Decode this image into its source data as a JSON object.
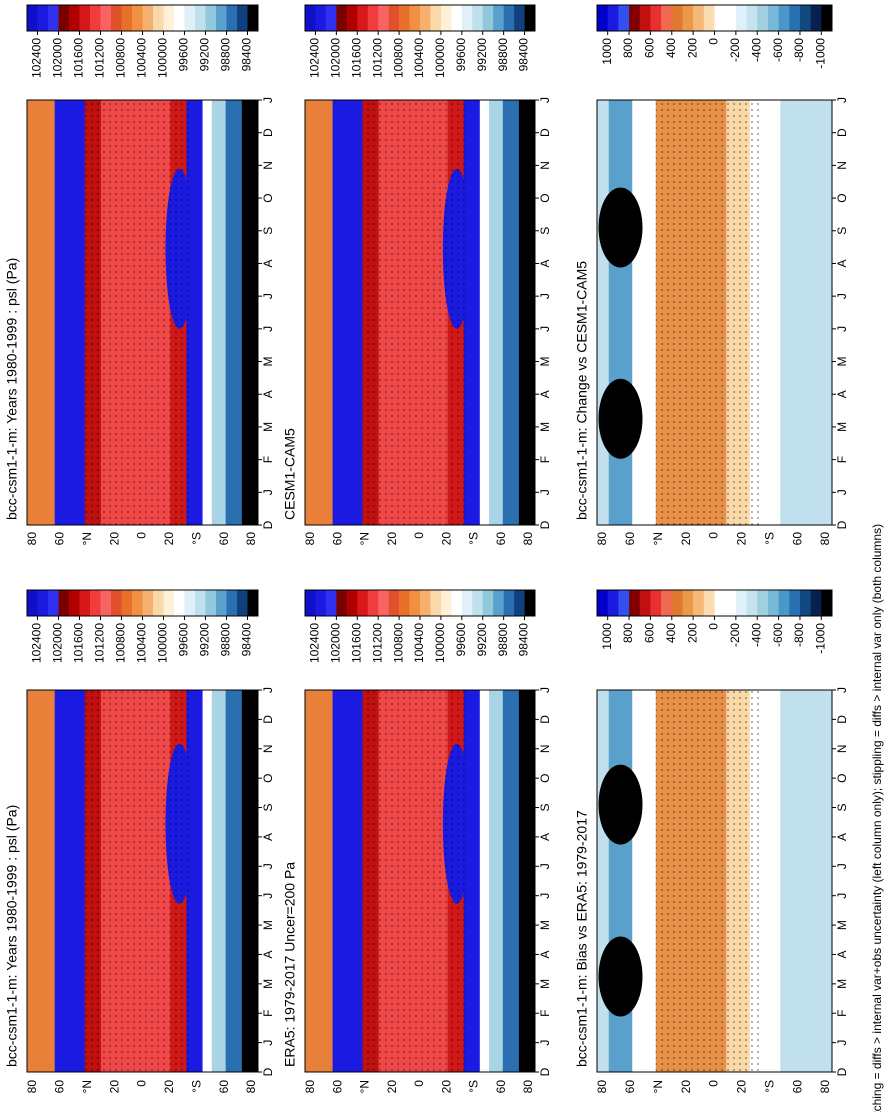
{
  "panels": [
    {
      "title": "bcc-csm1-1-m: Years 1980-1999 : psl (Pa)",
      "colorbar": [
        102400,
        102000,
        101600,
        101200,
        100800,
        100400,
        100000,
        99600,
        99200,
        98800,
        98400
      ]
    },
    {
      "title": "CESM1-CAM5",
      "colorbar": [
        102400,
        102000,
        101600,
        101200,
        100800,
        100400,
        100000,
        99600,
        99200,
        98800,
        98400
      ]
    },
    {
      "title": "bcc-csm1-1-m: Change vs CESM1-CAM5",
      "colorbar": [
        1000,
        800,
        600,
        400,
        200,
        0,
        -200,
        -400,
        -600,
        -800,
        -1000
      ]
    },
    {
      "title": "bcc-csm1-1-m: Years 1980-1999 : psl (Pa)",
      "colorbar": [
        102400,
        102000,
        101600,
        101200,
        100800,
        100400,
        100000,
        99600,
        99200,
        98800,
        98400
      ]
    },
    {
      "title": "ERA5: 1979-2017 Uncer=200 Pa",
      "colorbar": [
        102400,
        102000,
        101600,
        101200,
        100800,
        100400,
        100000,
        99600,
        99200,
        98800,
        98400
      ]
    },
    {
      "title": "bcc-csm1-1-m: Bias vs ERA5: 1979-2017",
      "colorbar": [
        1000,
        800,
        600,
        400,
        200,
        0,
        -200,
        -400,
        -600,
        -800,
        -1000
      ]
    }
  ],
  "latitude_labels": [
    "80",
    "60",
    "°N",
    "20",
    "0",
    "20",
    "°S",
    "60",
    "80"
  ],
  "month_labels": [
    "D",
    "J",
    "F",
    "M",
    "A",
    "M",
    "J",
    "J",
    "A",
    "S",
    "O",
    "N",
    "D",
    "J"
  ],
  "footer": "hatching = diffs > internal var+obs uncertainty (left column only); stippling = diffs > internal var only (both columns)"
}
